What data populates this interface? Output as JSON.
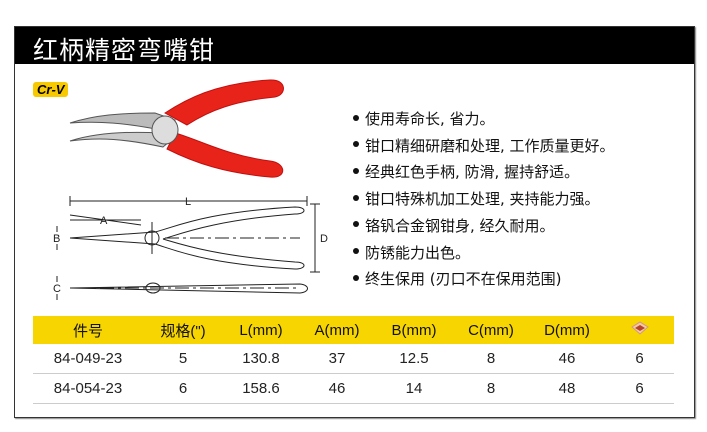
{
  "title": "红柄精密弯嘴钳",
  "badge": "Cr-V",
  "drawing_labels": {
    "L": "L",
    "A": "A",
    "B": "B",
    "C": "C",
    "D": "D"
  },
  "features": [
    "使用寿命长, 省力。",
    "钳口精细研磨和处理, 工作质量更好。",
    "经典红色手柄, 防滑, 握持舒适。",
    "钳口特殊机加工处理, 夹持能力强。",
    "铬钒合金钢钳身, 经久耐用。",
    "防锈能力出色。",
    "终生保用 (刃口不在保用范围)"
  ],
  "table": {
    "headers": [
      "件号",
      "规格(\")",
      "L(mm)",
      "A(mm)",
      "B(mm)",
      "C(mm)",
      "D(mm)"
    ],
    "last_header_icon": "box-icon",
    "rows": [
      [
        "84-049-23",
        "5",
        "130.8",
        "37",
        "12.5",
        "8",
        "46",
        "6"
      ],
      [
        "84-054-23",
        "6",
        "158.6",
        "46",
        "14",
        "8",
        "48",
        "6"
      ]
    ]
  },
  "colors": {
    "header_bg": "#000000",
    "accent_yellow": "#f7d500",
    "handle_red": "#e8241a"
  }
}
